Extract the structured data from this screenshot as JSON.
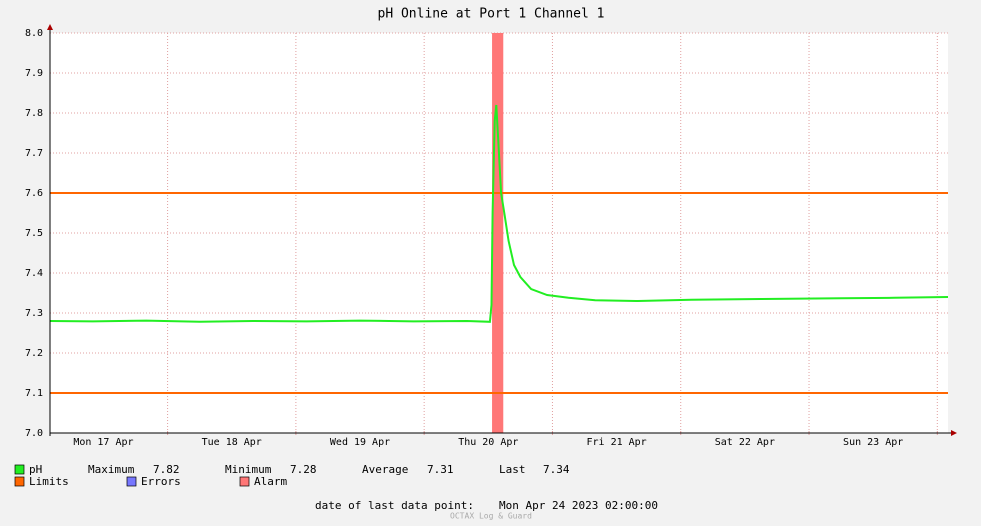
{
  "chart_data": {
    "type": "line",
    "title": "pH Online at Port 1 Channel 1",
    "xlim": [
      2,
      170
    ],
    "xticks": [
      {
        "value": 12,
        "label": "Mon 17 Apr"
      },
      {
        "value": 36,
        "label": "Tue 18 Apr"
      },
      {
        "value": 60,
        "label": "Wed 19 Apr"
      },
      {
        "value": 84,
        "label": "Thu 20 Apr"
      },
      {
        "value": 108,
        "label": "Fri 21 Apr"
      },
      {
        "value": 132,
        "label": "Sat 22 Apr"
      },
      {
        "value": 156,
        "label": "Sun 23 Apr"
      }
    ],
    "xgrid": [
      24,
      48,
      72,
      96,
      120,
      144,
      168
    ],
    "ylim": [
      7.0,
      8.0
    ],
    "yticks": [
      {
        "value": 7.0,
        "label": "7.0"
      },
      7.1,
      7.2,
      7.3,
      7.4,
      7.5,
      7.6,
      7.7,
      7.8,
      7.9,
      {
        "value": 8.0,
        "label": "8.0"
      }
    ],
    "grid": true,
    "series": [
      {
        "name": "pH",
        "color": "#22ee22",
        "x": [
          2,
          10,
          20,
          30,
          40,
          50,
          60,
          70,
          80,
          84.3,
          84.6,
          84.8,
          85.2,
          85.5,
          85.9,
          86.4,
          87,
          87.8,
          88.8,
          90,
          92,
          95,
          99,
          104,
          112,
          122,
          135,
          150,
          160,
          170
        ],
        "values": [
          7.28,
          7.279,
          7.281,
          7.278,
          7.28,
          7.279,
          7.281,
          7.279,
          7.28,
          7.278,
          7.32,
          7.55,
          7.78,
          7.82,
          7.72,
          7.6,
          7.55,
          7.48,
          7.42,
          7.39,
          7.36,
          7.345,
          7.338,
          7.332,
          7.33,
          7.333,
          7.335,
          7.337,
          7.338,
          7.34
        ]
      }
    ],
    "stats": [
      {
        "label": "Maximum",
        "value": 7.82
      },
      {
        "label": "Minimum",
        "value": 7.28
      },
      {
        "label": "Average",
        "value": 7.31
      },
      {
        "label": "Last",
        "value": 7.34
      }
    ],
    "limits": {
      "name": "Limits",
      "color": "#ff6600",
      "values": [
        7.1,
        7.6
      ]
    },
    "errors": {
      "name": "Errors",
      "color": "#7777ff"
    },
    "alarm": {
      "name": "Alarm",
      "color": "#ff7777",
      "x": [
        84.7,
        86.8
      ]
    },
    "footer": {
      "label": "date of last data point:",
      "value": "Mon Apr 24 2023 02:00:00"
    },
    "watermark": "OCTAX Log & Guard"
  }
}
